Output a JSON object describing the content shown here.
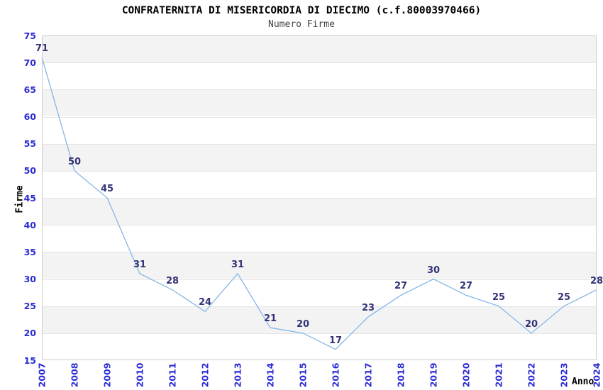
{
  "chart_data": {
    "type": "line",
    "title": "CONFRATERNITA DI MISERICORDIA DI DIECIMO (c.f.80003970466)",
    "subtitle": "Numero Firme",
    "xlabel": "Anno",
    "ylabel": "Firme",
    "categories": [
      "2007",
      "2008",
      "2009",
      "2010",
      "2011",
      "2012",
      "2013",
      "2014",
      "2015",
      "2016",
      "2017",
      "2018",
      "2019",
      "2020",
      "2021",
      "2022",
      "2023",
      "2024"
    ],
    "series": [
      {
        "name": "Numero Firme",
        "values": [
          71,
          50,
          45,
          31,
          28,
          24,
          31,
          21,
          20,
          17,
          23,
          27,
          30,
          27,
          25,
          20,
          25,
          28
        ]
      }
    ],
    "ylim": [
      15,
      75
    ],
    "ytick_step": 5,
    "yticks": [
      15,
      20,
      25,
      30,
      35,
      40,
      45,
      50,
      55,
      60,
      65,
      70,
      75
    ],
    "grid": "horizontal alternating bands every 5 units, gray band when lower bound is multiple of 10",
    "legend_position": "none",
    "point_labels_visible": true,
    "colors": {
      "line": "#85b7e8",
      "tick_label": "#2b2bd4",
      "data_label": "#333377",
      "band_gray": "#f3f3f3",
      "band_white": "#ffffff",
      "gridline": "#e4e4e4",
      "frame": "#cccccc",
      "title": "#000000",
      "subtitle": "#444444",
      "background": "#ffffff"
    }
  }
}
